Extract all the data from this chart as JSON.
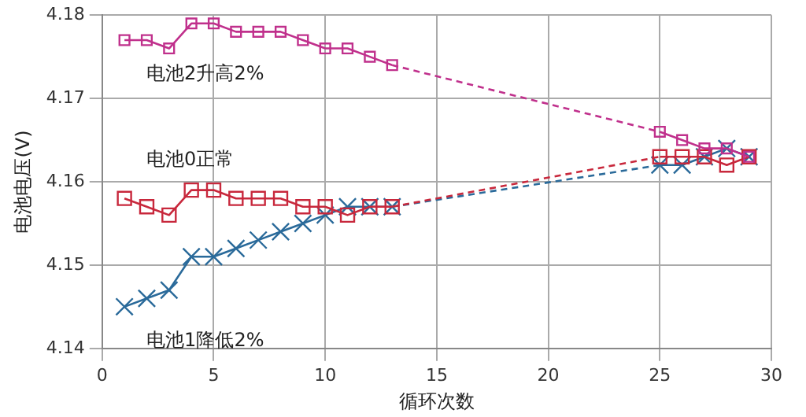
{
  "chart_data": {
    "type": "line",
    "xlabel": "循环次数",
    "ylabel": "电池电压(V)",
    "xlim": [
      0,
      30
    ],
    "xticks": [
      0,
      5,
      10,
      15,
      20,
      25,
      30
    ],
    "ylim": [
      4.14,
      4.18
    ],
    "yticks": [
      4.14,
      4.15,
      4.16,
      4.17,
      4.18
    ],
    "grid": true,
    "legend": false,
    "x": [
      1,
      2,
      3,
      4,
      5,
      6,
      7,
      8,
      9,
      10,
      11,
      12,
      13,
      25,
      26,
      27,
      28,
      29
    ],
    "series": [
      {
        "name": "电池2升高2%",
        "color": "#c0308c",
        "marker": "square",
        "values": [
          4.177,
          4.177,
          4.176,
          4.179,
          4.179,
          4.178,
          4.178,
          4.178,
          4.177,
          4.176,
          4.176,
          4.175,
          4.174,
          4.166,
          4.165,
          4.164,
          4.164,
          4.163
        ]
      },
      {
        "name": "电池0正常",
        "color": "#c8283c",
        "marker": "square",
        "values": [
          4.158,
          4.157,
          4.156,
          4.159,
          4.159,
          4.158,
          4.158,
          4.158,
          4.157,
          4.157,
          4.156,
          4.157,
          4.157,
          4.163,
          4.163,
          4.163,
          4.162,
          4.163
        ]
      },
      {
        "name": "电池1降低2%",
        "color": "#2a6a9a",
        "marker": "cross",
        "values": [
          4.145,
          4.146,
          4.147,
          4.151,
          4.151,
          4.152,
          4.153,
          4.154,
          4.155,
          4.156,
          4.157,
          4.157,
          4.157,
          4.162,
          4.162,
          4.163,
          4.164,
          4.163
        ]
      }
    ]
  }
}
